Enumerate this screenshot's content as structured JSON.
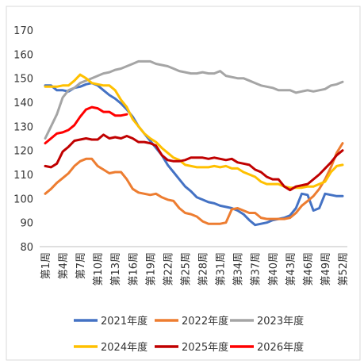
{
  "chart_data": {
    "type": "line",
    "categories": [
      "第1周",
      null,
      null,
      "第4周",
      null,
      null,
      "第7周",
      null,
      null,
      "第10周",
      null,
      null,
      "第13周",
      null,
      null,
      "第16周",
      null,
      null,
      "第19周",
      null,
      null,
      "第22周",
      null,
      null,
      "第25周",
      null,
      null,
      "第28周",
      null,
      null,
      "第31周",
      null,
      null,
      "第34周",
      null,
      null,
      "第37周",
      null,
      null,
      "第40周",
      null,
      null,
      "第43周",
      null,
      null,
      "第46周",
      null,
      null,
      "第49周",
      null,
      null,
      "第52周"
    ],
    "ylim": [
      80,
      170
    ],
    "yticks": [
      80,
      90,
      100,
      110,
      120,
      130,
      140,
      150,
      160,
      170
    ],
    "grid": false,
    "legend": "bottom",
    "series": [
      {
        "name": "2021年度",
        "color": "#4472c4",
        "values": [
          147,
          147,
          145,
          145,
          144.5,
          146,
          146.5,
          147.5,
          148,
          147,
          145,
          143,
          141.5,
          139.5,
          137,
          134,
          130,
          127,
          124,
          121,
          118,
          114,
          111,
          108,
          105,
          103,
          100.5,
          99.5,
          98.5,
          98,
          97,
          96.5,
          96,
          95,
          93.5,
          91,
          89,
          89.5,
          90,
          91,
          91.5,
          92,
          93,
          96,
          102,
          101.5,
          95,
          96,
          102,
          101.5,
          101,
          101
        ]
      },
      {
        "name": "2022年度",
        "color": "#ed7d31",
        "values": [
          102,
          104,
          106.5,
          108.5,
          110.5,
          113.5,
          115.5,
          116.5,
          116.5,
          113.5,
          112,
          110.5,
          111,
          111,
          108,
          104,
          102.5,
          102,
          101.5,
          102,
          100.5,
          99.5,
          99,
          96,
          94,
          93.5,
          92.5,
          90.5,
          89.5,
          89.5,
          89.5,
          90,
          95.5,
          96,
          95,
          94,
          94,
          92,
          91.5,
          91.5,
          91.5,
          91.5,
          92,
          94,
          97,
          99,
          101,
          104,
          108,
          113,
          119,
          123
        ]
      },
      {
        "name": "2023年度",
        "color": "#a5a5a5",
        "values": [
          125,
          130,
          135,
          142,
          145,
          146,
          148,
          149,
          150,
          151,
          152,
          152.5,
          153.5,
          154,
          155,
          156,
          157,
          157,
          157,
          156,
          155.5,
          155,
          154,
          153,
          152.5,
          152,
          152,
          152.5,
          152,
          152,
          153,
          151,
          150.5,
          150,
          150,
          149,
          148,
          147,
          146.5,
          146,
          145,
          145,
          145,
          144,
          144.5,
          145,
          144.5,
          145,
          145.5,
          147,
          147.5,
          148.5
        ]
      },
      {
        "name": "2024年度",
        "color": "#ffc000",
        "values": [
          146.5,
          146.5,
          146.5,
          147,
          147,
          149,
          151.5,
          150,
          148,
          147.5,
          147,
          147,
          145,
          141,
          138,
          133,
          130,
          127,
          125,
          123.5,
          121,
          119,
          117,
          116,
          114,
          113.5,
          113,
          113,
          113,
          113.5,
          113,
          113.5,
          112.5,
          112.5,
          111,
          110,
          109,
          107,
          106,
          106,
          106,
          105,
          104.5,
          104.5,
          104.5,
          105,
          105,
          106,
          107,
          111,
          113.5,
          114
        ]
      },
      {
        "name": "2025年度",
        "color": "#c00000",
        "values": [
          113.5,
          113,
          114.5,
          119.5,
          121.5,
          124,
          124.5,
          125,
          124.5,
          124.5,
          126.5,
          125,
          125.5,
          125,
          126,
          125,
          123.5,
          123.5,
          123,
          122,
          118,
          116,
          115.5,
          115.5,
          116,
          117,
          117,
          117,
          116.5,
          117,
          116.5,
          116,
          116.5,
          115,
          114.5,
          114,
          112,
          111,
          109,
          108,
          108,
          105,
          103.5,
          105,
          105.5,
          106,
          108,
          110,
          112.5,
          115,
          118,
          120
        ]
      },
      {
        "name": "2026年度",
        "color": "#ff0000",
        "values": [
          123,
          125,
          127,
          127.5,
          128.5,
          130.5,
          134,
          137,
          138,
          137.5,
          136,
          136,
          134.5,
          134.5,
          135,
          null,
          null,
          null,
          null,
          null,
          null,
          null,
          null,
          null,
          null,
          null,
          null,
          null,
          null,
          null,
          null,
          null,
          null,
          null,
          null,
          null,
          null,
          null,
          null,
          null,
          null,
          null,
          null,
          null,
          null,
          null,
          null,
          null,
          null,
          null,
          null,
          null
        ]
      }
    ]
  }
}
